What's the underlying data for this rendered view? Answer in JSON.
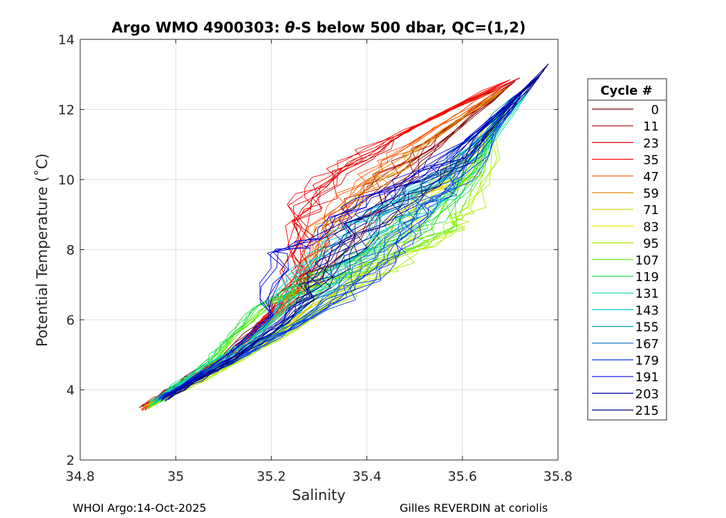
{
  "chart_data": {
    "type": "line",
    "title": "Argo WMO 4900303: θ-S below 500 dbar,  QC=(1,2)",
    "title_parts": [
      "Argo WMO 4900303: ",
      "θ",
      "-S below 500 dbar,  QC=(1,2)"
    ],
    "xlabel": "Salinity",
    "ylabel": "Potential Temperature (˚C)",
    "xlim": [
      34.8,
      35.8
    ],
    "ylim": [
      2,
      14
    ],
    "xticks": [
      34.8,
      35,
      35.2,
      35.4,
      35.6,
      35.8
    ],
    "xtick_labels": [
      "34.8",
      "35",
      "35.2",
      "35.4",
      "35.6",
      "35.8"
    ],
    "yticks": [
      2,
      4,
      6,
      8,
      10,
      12,
      14
    ],
    "ytick_labels": [
      "2",
      "4",
      "6",
      "8",
      "10",
      "12",
      "14"
    ],
    "grid": true,
    "legend_title": "Cycle #",
    "legend_position": "outside-right",
    "series": [
      {
        "name": "0",
        "color": "#800000",
        "s": [
          34.93,
          35.0,
          35.1,
          35.2,
          35.3,
          35.42,
          35.55,
          35.7
        ],
        "t": [
          3.45,
          4.1,
          5.0,
          6.2,
          7.5,
          9.2,
          11.0,
          12.7
        ]
      },
      {
        "name": "11",
        "color": "#aa0000",
        "s": [
          34.94,
          35.02,
          35.12,
          35.22,
          35.3,
          35.4,
          35.55,
          35.71
        ],
        "t": [
          3.5,
          4.25,
          5.1,
          6.3,
          8.2,
          9.8,
          11.3,
          12.8
        ]
      },
      {
        "name": "23",
        "color": "#d40000",
        "s": [
          34.93,
          35.04,
          35.15,
          35.25,
          35.27,
          35.35,
          35.5,
          35.72
        ],
        "t": [
          3.5,
          4.4,
          5.4,
          6.9,
          8.8,
          10.2,
          11.5,
          12.9
        ]
      },
      {
        "name": "35",
        "color": "#ff0000",
        "s": [
          34.94,
          35.03,
          35.14,
          35.24,
          35.26,
          35.33,
          35.48,
          35.7
        ],
        "t": [
          3.55,
          4.3,
          5.3,
          6.8,
          9.3,
          10.3,
          11.4,
          12.85
        ]
      },
      {
        "name": "47",
        "color": "#ff5500",
        "s": [
          34.93,
          35.02,
          35.13,
          35.25,
          35.3,
          35.38,
          35.5,
          35.68
        ],
        "t": [
          3.45,
          4.2,
          5.2,
          6.6,
          8.6,
          9.9,
          11.1,
          12.6
        ]
      },
      {
        "name": "59",
        "color": "#e08800",
        "s": [
          34.94,
          35.05,
          35.17,
          35.28,
          35.32,
          35.42,
          35.52,
          35.69
        ],
        "t": [
          3.5,
          4.45,
          5.5,
          7.0,
          8.7,
          9.9,
          11.0,
          12.6
        ]
      },
      {
        "name": "71",
        "color": "#c8c800",
        "s": [
          34.95,
          35.07,
          35.22,
          35.35,
          35.44,
          35.52,
          35.58,
          35.66
        ],
        "t": [
          3.55,
          4.5,
          5.7,
          7.1,
          8.5,
          9.6,
          10.3,
          11.8
        ]
      },
      {
        "name": "83",
        "color": "#e8e800",
        "s": [
          34.95,
          35.1,
          35.25,
          35.4,
          35.48,
          35.55,
          35.62,
          35.67
        ],
        "t": [
          3.6,
          4.7,
          5.9,
          7.2,
          8.4,
          9.7,
          10.1,
          11.9
        ]
      },
      {
        "name": "95",
        "color": "#aaee00",
        "s": [
          34.94,
          35.1,
          35.26,
          35.38,
          35.5,
          35.58,
          35.62,
          35.68
        ],
        "t": [
          3.5,
          4.6,
          5.8,
          7.0,
          7.9,
          8.6,
          9.2,
          12.0
        ]
      },
      {
        "name": "107",
        "color": "#55ee00",
        "s": [
          34.94,
          35.06,
          35.12,
          35.2,
          35.32,
          35.45,
          35.56,
          35.68
        ],
        "t": [
          3.5,
          4.5,
          5.5,
          6.5,
          7.1,
          7.8,
          8.6,
          12.0
        ]
      },
      {
        "name": "119",
        "color": "#22dd44",
        "s": [
          34.95,
          35.05,
          35.1,
          35.17,
          35.3,
          35.42,
          35.55,
          35.7
        ],
        "t": [
          3.6,
          4.6,
          5.3,
          6.4,
          7.3,
          8.0,
          8.8,
          12.2
        ]
      },
      {
        "name": "131",
        "color": "#00ddaa",
        "s": [
          34.95,
          35.04,
          35.15,
          35.26,
          35.36,
          35.46,
          35.57,
          35.74
        ],
        "t": [
          3.65,
          4.5,
          5.4,
          6.6,
          7.6,
          8.7,
          9.5,
          12.55
        ]
      },
      {
        "name": "143",
        "color": "#00cccc",
        "s": [
          34.96,
          35.07,
          35.18,
          35.25,
          35.35,
          35.45,
          35.55,
          35.72
        ],
        "t": [
          3.7,
          4.6,
          5.6,
          7.2,
          8.5,
          9.3,
          10.0,
          12.4
        ]
      },
      {
        "name": "155",
        "color": "#0099bb",
        "s": [
          34.96,
          35.08,
          35.2,
          35.32,
          35.4,
          35.48,
          35.56,
          35.71
        ],
        "t": [
          3.7,
          4.6,
          5.6,
          6.9,
          8.3,
          9.5,
          10.3,
          12.4
        ]
      },
      {
        "name": "167",
        "color": "#0066cc",
        "s": [
          34.97,
          35.1,
          35.23,
          35.36,
          35.43,
          35.5,
          35.58,
          35.72
        ],
        "t": [
          3.75,
          4.7,
          5.7,
          6.9,
          8.0,
          9.2,
          10.1,
          12.5
        ]
      },
      {
        "name": "179",
        "color": "#0033ee",
        "s": [
          34.97,
          35.12,
          35.25,
          35.38,
          35.46,
          35.52,
          35.6,
          35.73
        ],
        "t": [
          3.8,
          4.8,
          5.8,
          6.9,
          7.9,
          9.0,
          10.0,
          12.6
        ]
      },
      {
        "name": "191",
        "color": "#0000dd",
        "s": [
          34.97,
          35.1,
          35.2,
          35.21,
          35.3,
          35.4,
          35.55,
          35.76
        ],
        "t": [
          3.7,
          4.9,
          6.1,
          7.9,
          8.3,
          9.5,
          10.5,
          12.9
        ]
      },
      {
        "name": "203",
        "color": "#0000aa",
        "s": [
          34.98,
          35.12,
          35.22,
          35.3,
          35.38,
          35.48,
          35.58,
          35.77
        ],
        "t": [
          3.8,
          4.9,
          6.0,
          7.3,
          8.8,
          9.8,
          10.6,
          13.1
        ]
      },
      {
        "name": "215",
        "color": "#000080",
        "s": [
          34.98,
          35.12,
          35.23,
          35.32,
          35.4,
          35.5,
          35.6,
          35.78
        ],
        "t": [
          3.75,
          4.85,
          5.9,
          7.2,
          8.4,
          9.6,
          10.5,
          13.3
        ]
      }
    ]
  },
  "footer": {
    "left": "WHOI Argo:14-Oct-2025",
    "right": "Gilles REVERDIN at coriolis"
  }
}
